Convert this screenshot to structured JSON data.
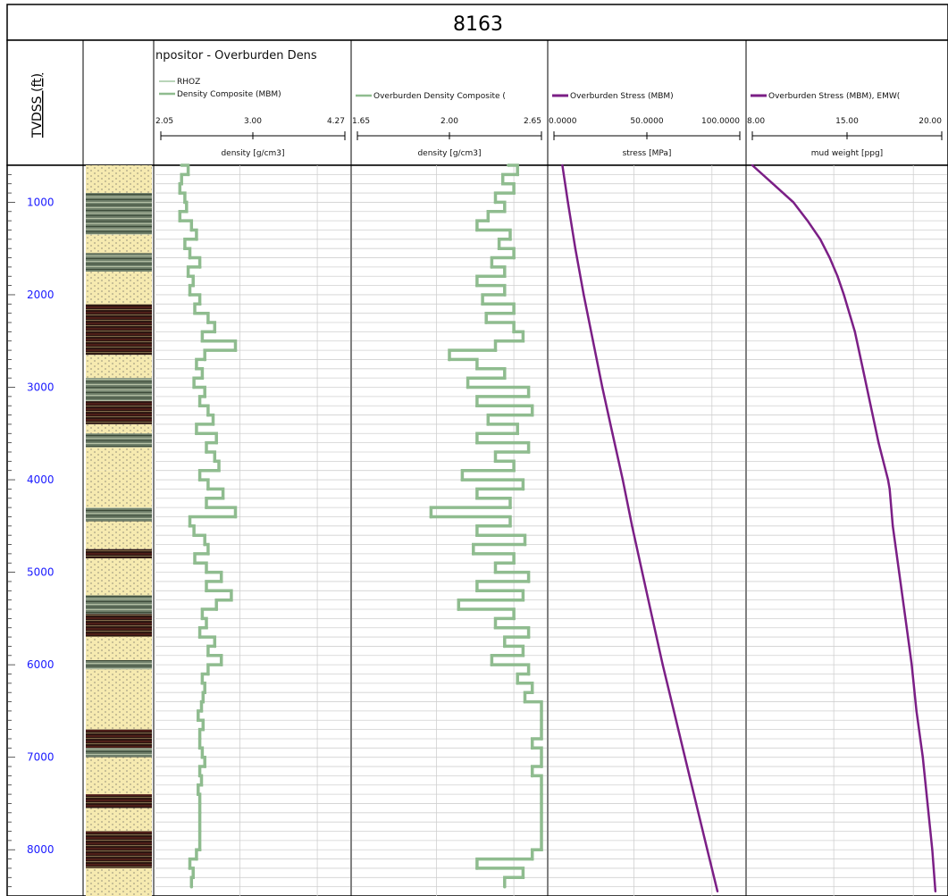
{
  "well_title": "8163",
  "depth_axis": {
    "label": "TVDSS (ft)",
    "range": [
      600,
      8500
    ],
    "ticks": [
      "1000",
      "2000",
      "3000",
      "4000",
      "5000",
      "6000",
      "7000",
      "8000"
    ],
    "tick_values": [
      1000,
      2000,
      3000,
      4000,
      5000,
      6000,
      7000,
      8000
    ]
  },
  "colors": {
    "density": "#8fbc8f",
    "stress": "#7b1f86",
    "depth_text": "#1a1aff",
    "grid": "#d0d0d0",
    "frame": "#000000"
  },
  "lithology": {
    "column_header": "",
    "pattern": "sand-shale-coal banded column",
    "units": [
      {
        "top": 600,
        "base": 900,
        "type": "sand"
      },
      {
        "top": 900,
        "base": 1350,
        "type": "shale"
      },
      {
        "top": 1350,
        "base": 1550,
        "type": "sand"
      },
      {
        "top": 1550,
        "base": 1750,
        "type": "shale"
      },
      {
        "top": 1750,
        "base": 2100,
        "type": "sand"
      },
      {
        "top": 2100,
        "base": 2650,
        "type": "coal"
      },
      {
        "top": 2650,
        "base": 2900,
        "type": "sand"
      },
      {
        "top": 2900,
        "base": 3150,
        "type": "shale"
      },
      {
        "top": 3150,
        "base": 3400,
        "type": "coal"
      },
      {
        "top": 3400,
        "base": 3500,
        "type": "sand"
      },
      {
        "top": 3500,
        "base": 3650,
        "type": "shale"
      },
      {
        "top": 3650,
        "base": 3900,
        "type": "sand"
      },
      {
        "top": 3900,
        "base": 4300,
        "type": "sand"
      },
      {
        "top": 4300,
        "base": 4450,
        "type": "shale"
      },
      {
        "top": 4450,
        "base": 4750,
        "type": "sand"
      },
      {
        "top": 4750,
        "base": 4850,
        "type": "coal"
      },
      {
        "top": 4850,
        "base": 5250,
        "type": "sand"
      },
      {
        "top": 5250,
        "base": 5450,
        "type": "shale"
      },
      {
        "top": 5450,
        "base": 5700,
        "type": "coal"
      },
      {
        "top": 5700,
        "base": 5950,
        "type": "sand"
      },
      {
        "top": 5950,
        "base": 6050,
        "type": "shale"
      },
      {
        "top": 6050,
        "base": 6700,
        "type": "sand"
      },
      {
        "top": 6700,
        "base": 6900,
        "type": "coal"
      },
      {
        "top": 6900,
        "base": 7000,
        "type": "shale"
      },
      {
        "top": 7000,
        "base": 7400,
        "type": "sand"
      },
      {
        "top": 7400,
        "base": 7550,
        "type": "coal"
      },
      {
        "top": 7550,
        "base": 7800,
        "type": "sand"
      },
      {
        "top": 7800,
        "base": 8200,
        "type": "coal"
      },
      {
        "top": 8200,
        "base": 8500,
        "type": "sand"
      }
    ]
  },
  "chart_data": [
    {
      "type": "line",
      "track_title": "npositor - Overburden Dens",
      "legend": [
        "RHOZ",
        "Density Composite (MBM)"
      ],
      "scale_labels": [
        "2.05",
        "3.00",
        "4.27"
      ],
      "xlim": [
        2.05,
        4.27
      ],
      "xlabel": "density [g/cm3]",
      "series": [
        {
          "name": "Density Composite (MBM)",
          "color": "#8fbc8f",
          "depth": [
            600,
            700,
            800,
            900,
            1000,
            1100,
            1200,
            1300,
            1400,
            1500,
            1600,
            1700,
            1800,
            1900,
            2000,
            2100,
            2200,
            2300,
            2400,
            2500,
            2600,
            2700,
            2800,
            2900,
            3000,
            3100,
            3200,
            3300,
            3400,
            3500,
            3600,
            3700,
            3800,
            3900,
            4000,
            4100,
            4200,
            4300,
            4400,
            4500,
            4600,
            4700,
            4800,
            4900,
            5000,
            5100,
            5200,
            5300,
            5400,
            5500,
            5600,
            5700,
            5800,
            5900,
            6000,
            6100,
            6200,
            6300,
            6400,
            6500,
            6600,
            6700,
            6800,
            6900,
            7000,
            7100,
            7200,
            7300,
            7400,
            7500,
            7600,
            7800,
            8000,
            8100,
            8200,
            8300,
            8400
          ],
          "values": [
            2.3,
            2.38,
            2.3,
            2.28,
            2.34,
            2.36,
            2.28,
            2.42,
            2.48,
            2.34,
            2.4,
            2.52,
            2.38,
            2.44,
            2.4,
            2.52,
            2.46,
            2.62,
            2.7,
            2.55,
            2.95,
            2.58,
            2.48,
            2.55,
            2.45,
            2.58,
            2.52,
            2.62,
            2.68,
            2.48,
            2.72,
            2.6,
            2.7,
            2.75,
            2.52,
            2.62,
            2.8,
            2.6,
            2.95,
            2.4,
            2.45,
            2.58,
            2.62,
            2.46,
            2.6,
            2.78,
            2.6,
            2.9,
            2.72,
            2.55,
            2.6,
            2.52,
            2.7,
            2.62,
            2.78,
            2.62,
            2.55,
            2.58,
            2.56,
            2.54,
            2.5,
            2.56,
            2.52,
            2.52,
            2.55,
            2.58,
            2.52,
            2.54,
            2.5,
            2.52,
            2.52,
            2.52,
            2.52,
            2.48,
            2.4,
            2.44,
            2.42
          ]
        }
      ]
    },
    {
      "type": "line",
      "legend": [
        "Overburden Density Composite ("
      ],
      "scale_labels": [
        "1.65",
        "2.00",
        "2.65"
      ],
      "xlim": [
        1.65,
        2.65
      ],
      "xlabel": "density [g/cm3]",
      "series": [
        {
          "name": "Overburden Density Composite (",
          "color": "#8fbc8f",
          "depth": [
            600,
            700,
            800,
            900,
            1000,
            1100,
            1200,
            1300,
            1400,
            1500,
            1600,
            1700,
            1800,
            1900,
            2000,
            2100,
            2200,
            2300,
            2400,
            2500,
            2600,
            2700,
            2800,
            2900,
            3000,
            3100,
            3200,
            3300,
            3400,
            3500,
            3600,
            3700,
            3800,
            3900,
            4000,
            4100,
            4200,
            4300,
            4400,
            4500,
            4600,
            4700,
            4800,
            4900,
            5000,
            5100,
            5200,
            5300,
            5400,
            5500,
            5600,
            5700,
            5800,
            5900,
            6000,
            6100,
            6200,
            6300,
            6400,
            6500,
            6600,
            6700,
            6800,
            6900,
            7000,
            7100,
            7200,
            7300,
            7400,
            7500,
            7600,
            7800,
            8000,
            8100,
            8200,
            8300,
            8400
          ],
          "values": [
            2.47,
            2.52,
            2.44,
            2.5,
            2.4,
            2.45,
            2.36,
            2.3,
            2.48,
            2.42,
            2.5,
            2.38,
            2.45,
            2.3,
            2.45,
            2.33,
            2.5,
            2.35,
            2.5,
            2.55,
            2.4,
            2.15,
            2.3,
            2.45,
            2.25,
            2.58,
            2.3,
            2.6,
            2.36,
            2.52,
            2.3,
            2.58,
            2.4,
            2.5,
            2.22,
            2.55,
            2.3,
            2.48,
            2.05,
            2.48,
            2.3,
            2.56,
            2.28,
            2.5,
            2.4,
            2.58,
            2.3,
            2.55,
            2.2,
            2.5,
            2.4,
            2.58,
            2.45,
            2.55,
            2.38,
            2.58,
            2.52,
            2.6,
            2.56,
            2.65,
            2.65,
            2.65,
            2.65,
            2.6,
            2.65,
            2.65,
            2.6,
            2.65,
            2.65,
            2.65,
            2.65,
            2.65,
            2.65,
            2.6,
            2.3,
            2.55,
            2.45
          ]
        }
      ]
    },
    {
      "type": "line",
      "legend": [
        "Overburden Stress (MBM)"
      ],
      "scale_labels": [
        "0.0000",
        "50.0000",
        "100.0000"
      ],
      "xlim": [
        0,
        100
      ],
      "xlabel": "stress [MPa]",
      "series": [
        {
          "name": "Overburden Stress (MBM)",
          "color": "#7b1f86",
          "depth": [
            600,
            1000,
            1500,
            2000,
            2500,
            3000,
            3500,
            4000,
            4500,
            5000,
            5500,
            6000,
            6500,
            7000,
            7500,
            8000,
            8450
          ],
          "values": [
            4.5,
            7.5,
            11.5,
            16.0,
            21.0,
            26.0,
            31.5,
            37.0,
            42.0,
            47.5,
            53.0,
            58.5,
            64.5,
            70.5,
            76.5,
            82.5,
            88.0
          ]
        }
      ]
    },
    {
      "type": "line",
      "legend": [
        "Overburden Stress (MBM), EMW("
      ],
      "scale_labels": [
        "8.00",
        "15.00",
        "20.00"
      ],
      "xlim": [
        8,
        20
      ],
      "xlabel": "mud weight [ppg]",
      "series": [
        {
          "name": "Overburden Stress (MBM), EMW(",
          "color": "#7b1f86",
          "depth": [
            600,
            800,
            1000,
            1200,
            1400,
            1600,
            1800,
            2000,
            2400,
            2800,
            3200,
            3600,
            4000,
            4100,
            4500,
            5000,
            5500,
            6000,
            6500,
            7000,
            7500,
            8000,
            8450
          ],
          "values": [
            8.0,
            9.3,
            10.6,
            11.5,
            12.3,
            12.9,
            13.4,
            13.8,
            14.5,
            15.0,
            15.5,
            16.0,
            16.6,
            16.7,
            16.9,
            17.3,
            17.7,
            18.1,
            18.4,
            18.8,
            19.1,
            19.4,
            19.6
          ]
        }
      ]
    }
  ]
}
